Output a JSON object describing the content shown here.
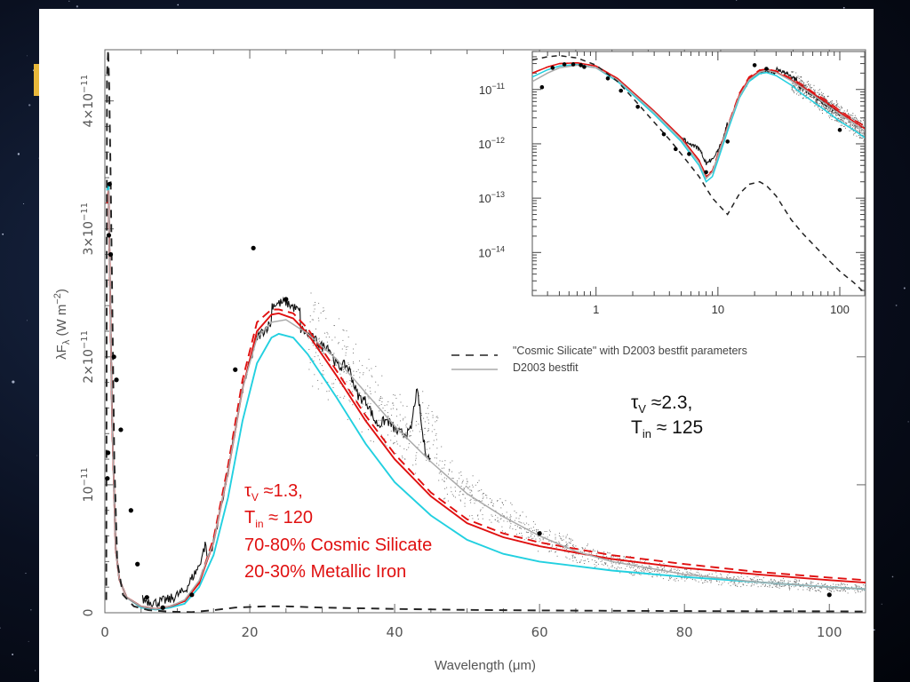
{
  "chart_data": {
    "type": "line",
    "xlabel": "Wavelength (μm)",
    "ylabel": "λF_λ (W m^-2)",
    "xlim": [
      0,
      105
    ],
    "ylim": [
      0,
      4.4e-11
    ],
    "x_ticks": [
      0,
      20,
      40,
      60,
      80,
      100
    ],
    "x_tick_labels": [
      "0",
      "20",
      "40",
      "60",
      "80",
      "100"
    ],
    "y_ticks": [
      0,
      1e-11,
      2e-11,
      3e-11,
      4e-11
    ],
    "y_tick_labels": [
      {
        "mant": "0",
        "exp": ""
      },
      {
        "mant": "10",
        "exp": "−11"
      },
      {
        "mant": "2×10",
        "exp": "−11"
      },
      {
        "mant": "3×10",
        "exp": "−11"
      },
      {
        "mant": "4×10",
        "exp": "−11"
      }
    ],
    "legend": {
      "placement": "middle-right",
      "entries": [
        {
          "label": "\"Cosmic Silicate\" with D2003 bestfit parameters",
          "style": "dashed",
          "color": "#222222"
        },
        {
          "label": "D2003 bestfit",
          "style": "solid",
          "color": "#aaaaaa"
        }
      ]
    },
    "annotations": {
      "right": {
        "tau": "τ",
        "tau_sub": "V",
        "tau_val": " ≈2.3,",
        "t": "T",
        "t_sub": "in",
        "t_val": " ≈ 125"
      },
      "left": {
        "tau": "τ",
        "tau_sub": "V",
        "tau_val": " ≈1.3,",
        "t": "T",
        "t_sub": "in",
        "t_val": " ≈ 120",
        "line3": "70-80% Cosmic Silicate",
        "line4": "20-30% Metallic Iron"
      }
    },
    "colors": {
      "red": "#e01010",
      "cyan": "#22d0e0",
      "gray": "#aaaaaa",
      "black": "#111111"
    },
    "series": [
      {
        "style": "solid-cyan",
        "x": [
          0.3,
          0.5,
          0.7,
          1.0,
          1.5,
          2,
          3,
          5,
          7,
          9,
          11,
          13,
          15,
          17,
          19,
          21,
          23,
          24,
          26,
          28,
          32,
          36,
          40,
          45,
          50,
          55,
          60,
          70,
          80,
          90,
          100,
          105
        ],
        "y": [
          3.3e-11,
          3.35e-11,
          2.6e-11,
          1.5e-11,
          5e-12,
          2.6e-12,
          1.2e-12,
          4e-13,
          2.5e-13,
          4e-13,
          7e-13,
          2e-12,
          4.5e-12,
          9e-12,
          1.5e-11,
          1.95e-11,
          2.15e-11,
          2.18e-11,
          2.15e-11,
          2.02e-11,
          1.68e-11,
          1.32e-11,
          1.02e-11,
          7.6e-12,
          5.7e-12,
          4.6e-12,
          4e-12,
          3.3e-12,
          2.8e-12,
          2.4e-12,
          2e-12,
          1.85e-12
        ]
      },
      {
        "style": "solid-red",
        "x": [
          0.3,
          0.5,
          0.7,
          1.0,
          1.5,
          2,
          3,
          5,
          7,
          9,
          11,
          13,
          15,
          17,
          19,
          21,
          23,
          24,
          26,
          28,
          32,
          36,
          40,
          45,
          50,
          55,
          60,
          70,
          80,
          90,
          100,
          105
        ],
        "y": [
          3.2e-11,
          3.3e-11,
          2.6e-11,
          1.5e-11,
          5e-12,
          2.6e-12,
          1.2e-12,
          5e-13,
          3e-13,
          5e-13,
          9e-13,
          2.3e-12,
          5.5e-12,
          1.1e-11,
          1.75e-11,
          2.2e-11,
          2.33e-11,
          2.34e-11,
          2.3e-11,
          2.18e-11,
          1.85e-11,
          1.5e-11,
          1.2e-11,
          9.1e-12,
          7e-12,
          5.9e-12,
          5.2e-12,
          4.2e-12,
          3.5e-12,
          3e-12,
          2.55e-12,
          2.35e-12
        ]
      },
      {
        "style": "dashed-red",
        "x": [
          0.3,
          0.5,
          0.7,
          1.0,
          1.5,
          2,
          3,
          5,
          7,
          9,
          11,
          13,
          15,
          17,
          19,
          21,
          23,
          24,
          26,
          28,
          32,
          36,
          40,
          45,
          50,
          55,
          60,
          70,
          80,
          90,
          100,
          105
        ],
        "y": [
          3.2e-11,
          3.3e-11,
          2.6e-11,
          1.5e-11,
          5e-12,
          2.6e-12,
          1.2e-12,
          5e-13,
          3e-13,
          5e-13,
          9e-13,
          2.4e-12,
          5.8e-12,
          1.15e-11,
          1.82e-11,
          2.27e-11,
          2.37e-11,
          2.37e-11,
          2.34e-11,
          2.22e-11,
          1.89e-11,
          1.54e-11,
          1.24e-11,
          9.4e-12,
          7.3e-12,
          6.2e-12,
          5.5e-12,
          4.5e-12,
          3.8e-12,
          3.2e-12,
          2.75e-12,
          2.55e-12
        ]
      },
      {
        "style": "solid-gray",
        "x": [
          0.3,
          0.5,
          0.7,
          1.0,
          1.5,
          2,
          3,
          5,
          7,
          9,
          11,
          13,
          15,
          17,
          19,
          21,
          23,
          25,
          28,
          32,
          36,
          40,
          45,
          50,
          55,
          60,
          65,
          70,
          80,
          90,
          100,
          105
        ],
        "y": [
          3.3e-11,
          3.3e-11,
          2.6e-11,
          1.5e-11,
          5e-12,
          2.6e-12,
          1.2e-12,
          5e-13,
          3e-13,
          5e-13,
          1e-12,
          2.5e-12,
          5.5e-12,
          1.1e-11,
          1.75e-11,
          2.15e-11,
          2.27e-11,
          2.29e-11,
          2.18e-11,
          1.98e-11,
          1.72e-11,
          1.46e-11,
          1.18e-11,
          9.3e-12,
          7.5e-12,
          6e-12,
          4.8e-12,
          4e-12,
          3e-12,
          2.4e-12,
          2e-12,
          1.85e-12
        ]
      },
      {
        "style": "dashed-black",
        "x": [
          0.2,
          0.3,
          0.45,
          0.6,
          0.8,
          1.0,
          1.3,
          1.7,
          2.5,
          4,
          6,
          9,
          12,
          15,
          18,
          22,
          25,
          30,
          40,
          50,
          60,
          70,
          80,
          90,
          100,
          105
        ],
        "y": [
          1e-12,
          4.2e-11,
          4.4e-11,
          4.1e-11,
          3.4e-11,
          2.5e-11,
          1.2e-11,
          4e-12,
          1.4e-12,
          5e-13,
          2e-13,
          8e-14,
          5e-14,
          2e-13,
          4e-13,
          5e-13,
          5e-13,
          4e-13,
          3e-13,
          2.2e-13,
          1.8e-13,
          1.5e-13,
          1.3e-13,
          1.2e-13,
          1.1e-13,
          1e-13
        ]
      }
    ],
    "photometry": {
      "x": [
        0.35,
        0.44,
        0.55,
        0.65,
        0.8,
        1.25,
        1.6,
        2.2,
        3.6,
        4.5,
        5.8,
        8,
        12,
        18,
        20.5,
        25,
        60,
        100
      ],
      "y": [
        1.05e-11,
        1.25e-11,
        2.95e-11,
        3.35e-11,
        2.8e-11,
        2e-11,
        1.82e-11,
        1.43e-11,
        8e-12,
        3.8e-12,
        1.2e-12,
        4e-13,
        1.4e-12,
        1.9e-11,
        2.85e-11,
        2.45e-11,
        6.2e-12,
        1.4e-12
      ]
    },
    "inset": {
      "type": "line",
      "xscale": "log",
      "yscale": "log",
      "xlim": [
        0.3,
        160
      ],
      "ylim": [
        1.6e-15,
        5e-11
      ],
      "x_tick_labels": [
        {
          "v": 1,
          "label": "1"
        },
        {
          "v": 10,
          "label": "10"
        },
        {
          "v": 100,
          "label": "100"
        }
      ],
      "y_tick_labels": [
        {
          "v": 1e-11,
          "mant": "10",
          "exp": "−11"
        },
        {
          "v": 1e-12,
          "mant": "10",
          "exp": "−12"
        },
        {
          "v": 1e-13,
          "mant": "10",
          "exp": "−13"
        },
        {
          "v": 1e-14,
          "mant": "10",
          "exp": "−14"
        }
      ],
      "series": [
        {
          "style": "solid-red",
          "x": [
            0.3,
            0.4,
            0.5,
            0.7,
            1,
            1.5,
            2,
            3,
            5,
            7,
            8,
            9,
            10,
            12,
            15,
            18,
            22,
            25,
            30,
            40,
            50,
            60,
            80,
            100,
            130,
            160
          ],
          "y": [
            2e-11,
            2.6e-11,
            3e-11,
            3.1e-11,
            2.7e-11,
            1.6e-11,
            9e-12,
            4e-12,
            1.3e-12,
            5e-13,
            2.5e-13,
            3e-13,
            6e-13,
            2e-12,
            8e-12,
            1.6e-11,
            2.2e-11,
            2.3e-11,
            2.1e-11,
            1.5e-11,
            1.1e-11,
            8.5e-12,
            5.5e-12,
            3.8e-12,
            2.6e-12,
            1.9e-12
          ]
        },
        {
          "style": "dashed-red",
          "x": [
            0.3,
            0.4,
            0.5,
            0.7,
            1,
            1.5,
            2,
            3,
            5,
            7,
            8,
            9,
            10,
            12,
            15,
            18,
            22,
            25,
            30,
            40,
            50,
            60,
            80,
            100,
            130,
            160
          ],
          "y": [
            2e-11,
            2.6e-11,
            3e-11,
            3.1e-11,
            2.7e-11,
            1.6e-11,
            9e-12,
            4e-12,
            1.3e-12,
            5e-13,
            2.6e-13,
            3.2e-13,
            6.5e-13,
            2.1e-12,
            8.5e-12,
            1.7e-11,
            2.28e-11,
            2.36e-11,
            2.2e-11,
            1.6e-11,
            1.2e-11,
            9e-12,
            6e-12,
            4.1e-12,
            2.8e-12,
            2.1e-12
          ]
        },
        {
          "style": "solid-cyan",
          "x": [
            0.3,
            0.4,
            0.5,
            0.7,
            1,
            1.5,
            2,
            3,
            5,
            7,
            8,
            9,
            10,
            12,
            15,
            18,
            22,
            25,
            30,
            40,
            50,
            60,
            80,
            100,
            130,
            160
          ],
          "y": [
            1.7e-11,
            2.3e-11,
            2.7e-11,
            2.9e-11,
            2.5e-11,
            1.4e-11,
            8e-12,
            3.5e-12,
            1.1e-12,
            4e-13,
            2e-13,
            2.5e-13,
            5e-13,
            1.7e-12,
            7e-12,
            1.4e-11,
            1.95e-11,
            2.05e-11,
            1.8e-11,
            1.2e-11,
            8e-12,
            6e-12,
            3.8e-12,
            2.6e-12,
            1.8e-12,
            1.3e-12
          ]
        },
        {
          "style": "solid-gray",
          "x": [
            0.3,
            0.4,
            0.5,
            0.7,
            1,
            1.5,
            2,
            3,
            5,
            7,
            8,
            9,
            10,
            12,
            15,
            18,
            22,
            25,
            30,
            40,
            50,
            60,
            80,
            100,
            130,
            160
          ],
          "y": [
            1.4e-11,
            2e-11,
            2.5e-11,
            2.8e-11,
            2.5e-11,
            1.5e-11,
            8.5e-12,
            3.8e-12,
            1.2e-12,
            4.5e-13,
            2.3e-13,
            3e-13,
            6e-13,
            2e-12,
            7.5e-12,
            1.5e-11,
            2.1e-11,
            2.25e-11,
            2.05e-11,
            1.45e-11,
            1.05e-11,
            8e-12,
            5e-12,
            3.5e-12,
            2.4e-12,
            1.7e-12
          ]
        },
        {
          "style": "dashed-black",
          "x": [
            0.3,
            0.4,
            0.5,
            0.7,
            1,
            1.5,
            2,
            3,
            4,
            5,
            7,
            9,
            12,
            15,
            18,
            22,
            25,
            30,
            40,
            50,
            70,
            100,
            130,
            160
          ],
          "y": [
            3.5e-11,
            4e-11,
            4.2e-11,
            3.8e-11,
            2.8e-11,
            1.4e-11,
            7e-12,
            2.5e-12,
            1.2e-12,
            6.5e-13,
            2.5e-13,
            1e-13,
            5e-14,
            1.2e-13,
            1.8e-13,
            2e-13,
            1.7e-13,
            1.1e-13,
            4e-14,
            2.2e-14,
            1e-14,
            4.5e-15,
            2.8e-15,
            1.8e-15
          ]
        }
      ],
      "photometry": {
        "x": [
          0.36,
          0.44,
          0.55,
          0.65,
          0.75,
          0.8,
          1.25,
          1.6,
          2.2,
          3.6,
          4.5,
          5.8,
          8,
          12,
          20,
          25,
          100
        ],
        "y": [
          1.1e-11,
          2.5e-11,
          2.9e-11,
          2.9e-11,
          2.8e-11,
          2.6e-11,
          1.6e-11,
          9.5e-12,
          4.8e-12,
          1.5e-12,
          8e-13,
          6.5e-13,
          3e-13,
          1.1e-12,
          2.8e-11,
          2.4e-11,
          1.8e-12
        ]
      }
    }
  }
}
